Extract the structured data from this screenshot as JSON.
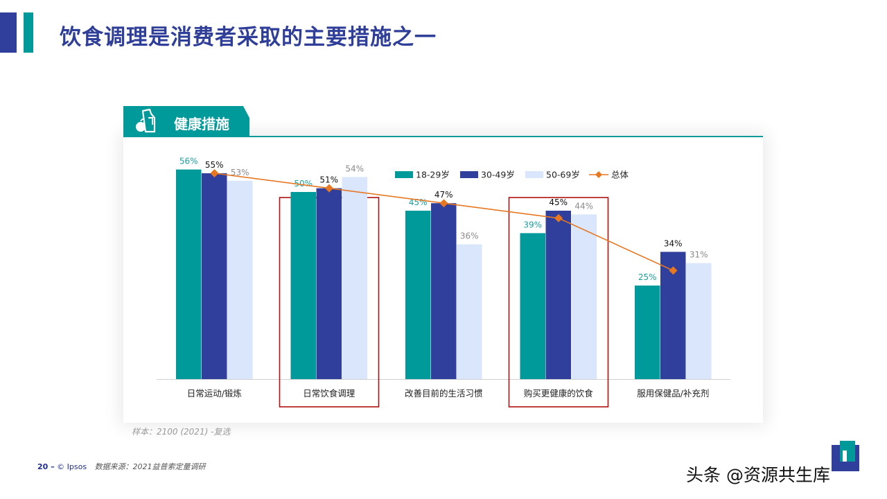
{
  "title": "饮食调理是消费者采取的主要措施之一",
  "section_tab": {
    "label": "健康措施",
    "icon": "food-apple-bottle-icon"
  },
  "sample_note": "样本：2100 (2021) -复选",
  "footer": {
    "page_number": "20 –",
    "brand": "© Ipsos",
    "source": "数据来源：2021益普索定量调研"
  },
  "watermark": "头条 @资源共生库",
  "colors": {
    "title": "#2e3e99",
    "teal": "#009a9b",
    "navy": "#2f3f9b",
    "light_blue": "#d9e6fb",
    "orange": "#e87722",
    "highlight_box": "#b01010"
  },
  "chart_data": {
    "type": "bar",
    "categories": [
      "日常运动/锻炼",
      "日常饮食调理",
      "改善目前的生活习惯",
      "购买更健康的饮食",
      "服用保健品/补充剂"
    ],
    "series": [
      {
        "name": "18-29岁",
        "kind": "bar",
        "color": "#009a9b",
        "label_color": "#1a9ea0",
        "values": [
          56,
          50,
          45,
          39,
          25
        ],
        "labels": [
          "56%",
          "50%",
          "45%",
          "39%",
          "25%"
        ]
      },
      {
        "name": "30-49岁",
        "kind": "bar",
        "color": "#2f3f9b",
        "label_color": "#111111",
        "values": [
          55,
          51,
          47,
          45,
          34
        ],
        "labels": [
          "55%",
          "51%",
          "47%",
          "45%",
          "34%"
        ]
      },
      {
        "name": "50-69岁",
        "kind": "bar",
        "color": "#d9e6fb",
        "label_color": "#8a8a8a",
        "values": [
          53,
          54,
          36,
          44,
          31
        ],
        "labels": [
          "53%",
          "54%",
          "36%",
          "44%",
          "31%"
        ]
      },
      {
        "name": "总体",
        "kind": "line",
        "color": "#e87722",
        "marker": "diamond",
        "values": [
          55,
          51,
          47,
          43,
          29
        ]
      }
    ],
    "highlighted_categories": [
      "日常饮食调理",
      "购买更健康的饮食"
    ],
    "ylim": [
      0,
      60
    ],
    "legend_position": "top-center",
    "grid": false
  }
}
